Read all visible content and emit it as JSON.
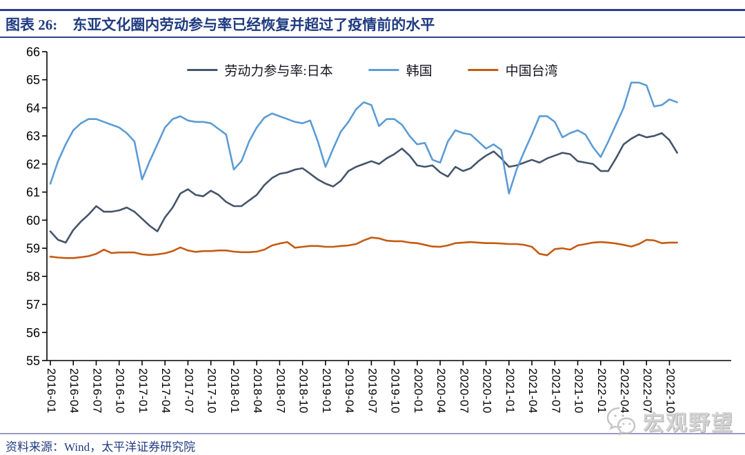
{
  "header": {
    "chart_label": "图表 26:",
    "title": "东亚文化圈内劳动参与率已经恢复并超过了疫情前的水平"
  },
  "footer": {
    "source": "资料来源：Wind，太平洋证券研究院",
    "watermark": "宏观野望"
  },
  "colors": {
    "title_navy": "#1F3B80",
    "header_rule": "#2F3C8E",
    "footer_rule": "#9A9AC6",
    "axis": "#000000",
    "japan": "#44546A",
    "korea": "#5B9BD5",
    "taiwan": "#C55A11",
    "watermark_gray": "#BBBBBB"
  },
  "chart_data": {
    "type": "line",
    "frequency": "monthly",
    "x_start": "2016-01",
    "x_end": "2022-11",
    "ylim": [
      55,
      66
    ],
    "y_ticks": [
      55,
      56,
      57,
      58,
      59,
      60,
      61,
      62,
      63,
      64,
      65,
      66
    ],
    "grid": false,
    "legend_position": "top-center",
    "x_tick_labels": [
      "2016-01",
      "2016-04",
      "2016-07",
      "2016-10",
      "2017-01",
      "2017-04",
      "2017-07",
      "2017-10",
      "2018-01",
      "2018-04",
      "2018-07",
      "2018-10",
      "2019-01",
      "2019-04",
      "2019-07",
      "2019-10",
      "2020-01",
      "2020-04",
      "2020-07",
      "2020-10",
      "2021-01",
      "2021-04",
      "2021-07",
      "2021-10",
      "2022-01",
      "2022-04",
      "2022-07",
      "2022-10"
    ],
    "series": [
      {
        "name": "劳动力参与率:日本",
        "color": "#44546A",
        "values": [
          59.6,
          59.3,
          59.2,
          59.65,
          59.95,
          60.2,
          60.5,
          60.3,
          60.3,
          60.35,
          60.45,
          60.3,
          60.05,
          59.8,
          59.6,
          60.1,
          60.45,
          60.95,
          61.1,
          60.9,
          60.85,
          61.05,
          60.9,
          60.65,
          60.5,
          60.5,
          60.7,
          60.9,
          61.25,
          61.5,
          61.65,
          61.7,
          61.8,
          61.85,
          61.65,
          61.45,
          61.3,
          61.2,
          61.4,
          61.75,
          61.9,
          62.0,
          62.1,
          62.0,
          62.2,
          62.35,
          62.55,
          62.3,
          61.95,
          61.9,
          61.95,
          61.7,
          61.55,
          61.9,
          61.75,
          61.85,
          62.1,
          62.3,
          62.45,
          62.2,
          61.9,
          61.95,
          62.05,
          62.15,
          62.05,
          62.2,
          62.3,
          62.4,
          62.35,
          62.1,
          62.05,
          62.0,
          61.75,
          61.75,
          62.2,
          62.7,
          62.9,
          63.05,
          62.95,
          63.0,
          63.1,
          62.85,
          62.4
        ]
      },
      {
        "name": "韩国",
        "color": "#5B9BD5",
        "values": [
          61.3,
          62.1,
          62.7,
          63.2,
          63.45,
          63.6,
          63.6,
          63.5,
          63.4,
          63.3,
          63.1,
          62.8,
          61.45,
          62.1,
          62.7,
          63.3,
          63.6,
          63.7,
          63.55,
          63.5,
          63.5,
          63.45,
          63.25,
          63.05,
          61.8,
          62.1,
          62.8,
          63.3,
          63.65,
          63.8,
          63.7,
          63.6,
          63.5,
          63.45,
          63.55,
          62.8,
          61.9,
          62.55,
          63.15,
          63.5,
          63.95,
          64.2,
          64.1,
          63.35,
          63.6,
          63.6,
          63.4,
          63.0,
          62.7,
          62.75,
          62.15,
          62.05,
          62.8,
          63.2,
          63.1,
          63.05,
          62.8,
          62.55,
          62.7,
          62.5,
          60.95,
          61.8,
          62.45,
          63.05,
          63.7,
          63.7,
          63.5,
          62.95,
          63.1,
          63.2,
          63.05,
          62.6,
          62.25,
          62.8,
          63.4,
          64.0,
          64.9,
          64.9,
          64.8,
          64.05,
          64.1,
          64.3,
          64.2
        ]
      },
      {
        "name": "中国台湾",
        "color": "#C55A11",
        "values": [
          58.7,
          58.67,
          58.65,
          58.65,
          58.68,
          58.72,
          58.8,
          58.95,
          58.83,
          58.85,
          58.85,
          58.85,
          58.78,
          58.76,
          58.78,
          58.82,
          58.9,
          59.03,
          58.92,
          58.87,
          58.9,
          58.9,
          58.92,
          58.92,
          58.88,
          58.86,
          58.86,
          58.88,
          58.95,
          59.1,
          59.17,
          59.22,
          59.02,
          59.05,
          59.08,
          59.08,
          59.05,
          59.05,
          59.08,
          59.1,
          59.15,
          59.28,
          59.38,
          59.35,
          59.27,
          59.25,
          59.25,
          59.2,
          59.18,
          59.12,
          59.06,
          59.05,
          59.1,
          59.18,
          59.2,
          59.22,
          59.2,
          59.18,
          59.18,
          59.17,
          59.15,
          59.15,
          59.12,
          59.05,
          58.8,
          58.75,
          58.97,
          59.0,
          58.95,
          59.1,
          59.15,
          59.2,
          59.22,
          59.2,
          59.17,
          59.12,
          59.06,
          59.15,
          59.3,
          59.28,
          59.18,
          59.2,
          59.2
        ]
      }
    ]
  }
}
